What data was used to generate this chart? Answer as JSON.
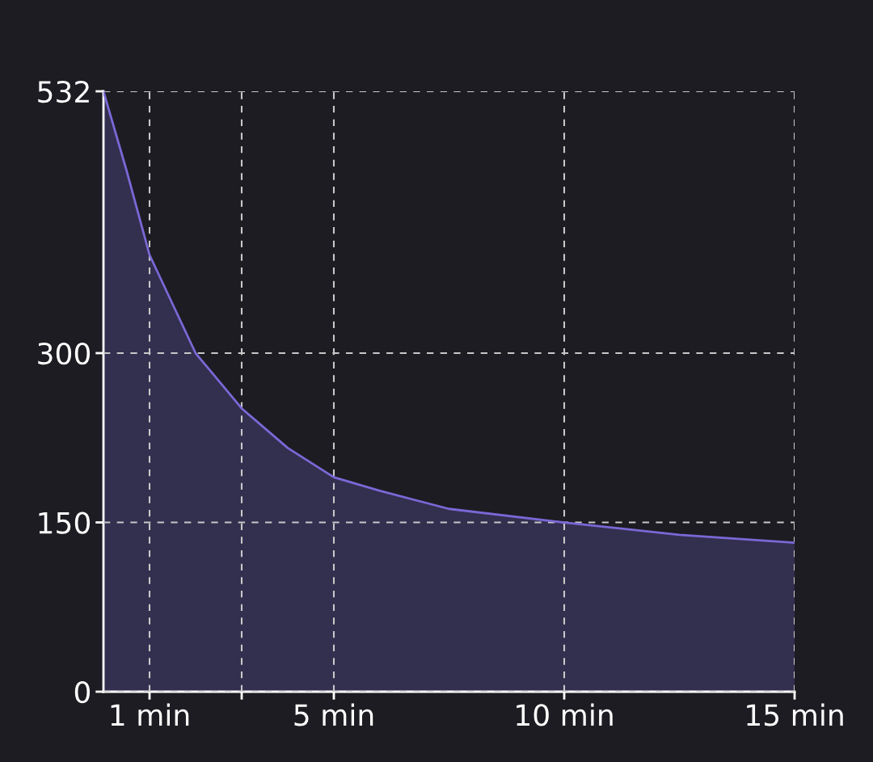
{
  "chart_data": {
    "type": "area",
    "x": [
      0,
      0.5,
      1,
      2,
      3,
      4,
      5,
      6,
      7.5,
      10,
      12.5,
      15
    ],
    "series": [
      {
        "color": "#7b68d6",
        "values": [
          532,
          462,
          387,
          300,
          251,
          216,
          190,
          178,
          162,
          150,
          139,
          132
        ]
      }
    ],
    "xlim": [
      0,
      15
    ],
    "xticks": [
      {
        "value": 1,
        "label": "1 min"
      },
      {
        "value": 3,
        "label": null
      },
      {
        "value": 5,
        "label": "5 min"
      },
      {
        "value": 10,
        "label": "10 min"
      },
      {
        "value": 15,
        "label": "15 min"
      }
    ],
    "ylim": [
      0,
      532
    ],
    "yticks": [
      0,
      150,
      300,
      532
    ],
    "grid": true
  }
}
